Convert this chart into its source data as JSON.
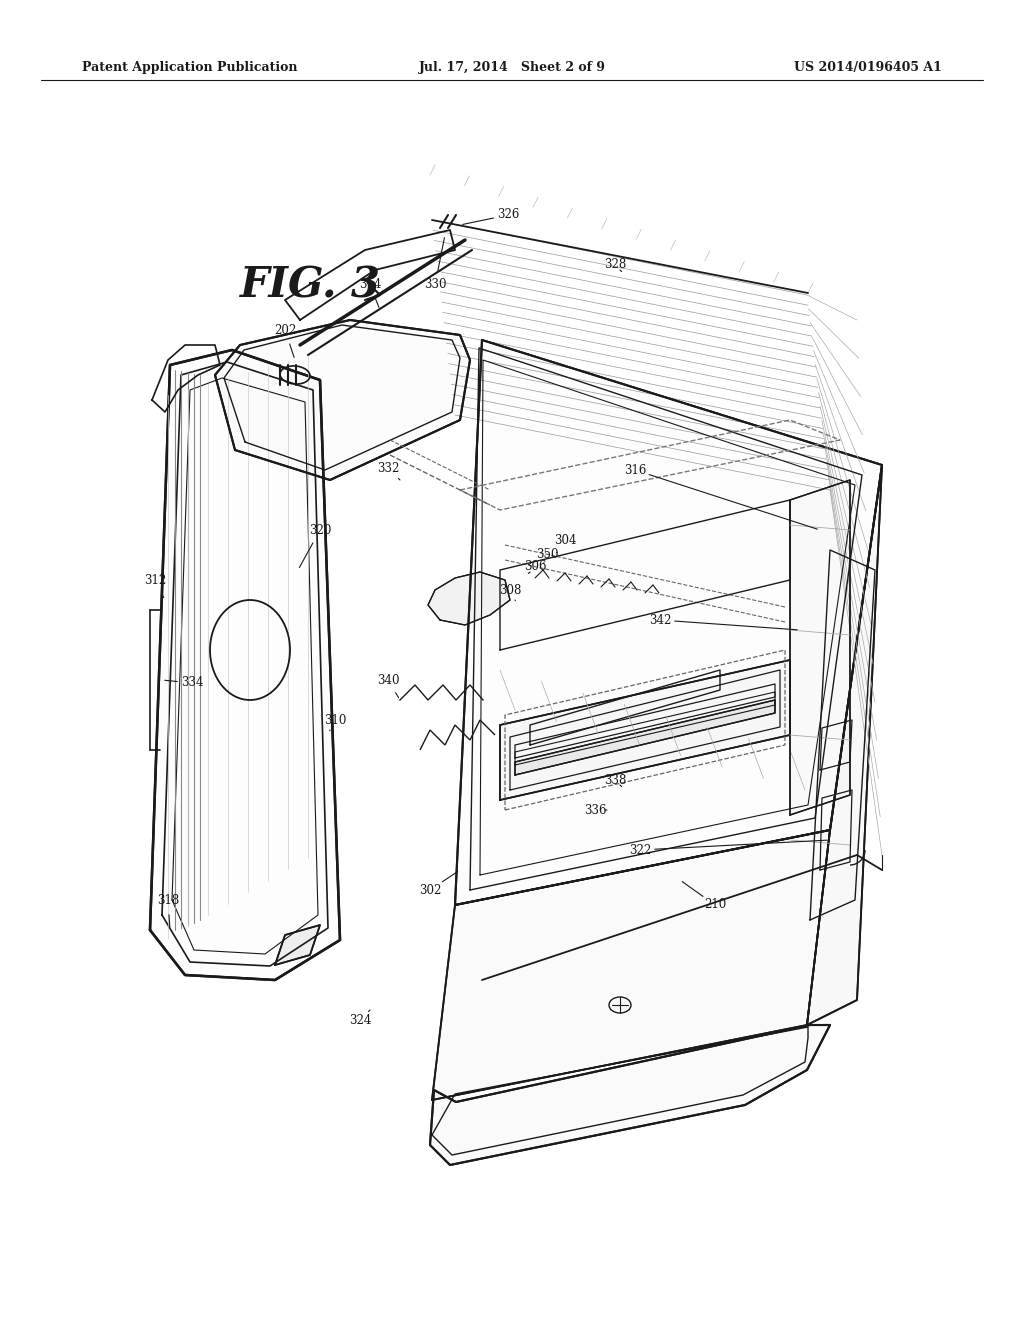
{
  "bg_color": "#ffffff",
  "line_color": "#1a1a1a",
  "header_left": "Patent Application Publication",
  "header_center": "Jul. 17, 2014   Sheet 2 of 9",
  "header_right": "US 2014/0196405 A1",
  "figure_label": "FIG. 3",
  "header_fontsize": 9,
  "fig_label_fontsize": 30,
  "ref_fontsize": 8.5,
  "page_width": 10.24,
  "page_height": 13.2
}
